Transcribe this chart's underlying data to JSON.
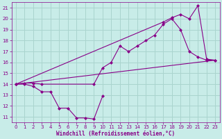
{
  "xlabel": "Windchill (Refroidissement éolien,°C)",
  "background_color": "#c8ece8",
  "grid_color": "#aad4ce",
  "line_color": "#880088",
  "xlim": [
    -0.5,
    23.5
  ],
  "ylim": [
    10.5,
    21.5
  ],
  "xticks": [
    0,
    1,
    2,
    3,
    4,
    5,
    6,
    7,
    8,
    9,
    10,
    11,
    12,
    13,
    14,
    15,
    16,
    17,
    18,
    19,
    20,
    21,
    22,
    23
  ],
  "yticks": [
    11,
    12,
    13,
    14,
    15,
    16,
    17,
    18,
    19,
    20,
    21
  ],
  "line1_x": [
    0,
    1,
    2,
    3,
    9,
    10,
    11,
    12,
    13,
    14,
    15,
    16,
    17,
    18,
    19,
    20,
    21,
    22,
    23
  ],
  "line1_y": [
    14.0,
    14.1,
    14.1,
    14.0,
    14.0,
    15.5,
    16.0,
    17.5,
    17.0,
    17.5,
    18.0,
    18.5,
    19.5,
    20.0,
    19.0,
    17.0,
    16.5,
    16.2,
    16.2
  ],
  "line2_x": [
    0,
    1,
    2,
    3,
    4,
    5,
    6,
    7,
    8,
    9,
    10
  ],
  "line2_y": [
    14.0,
    14.0,
    13.8,
    13.3,
    13.3,
    11.8,
    11.8,
    10.9,
    10.9,
    10.8,
    12.9
  ],
  "line3_x": [
    0,
    17,
    18,
    19,
    20,
    21,
    22,
    23
  ],
  "line3_y": [
    14.0,
    19.7,
    20.1,
    20.4,
    20.0,
    21.2,
    16.3,
    16.2
  ],
  "line4_x": [
    0,
    23
  ],
  "line4_y": [
    14.0,
    16.2
  ]
}
